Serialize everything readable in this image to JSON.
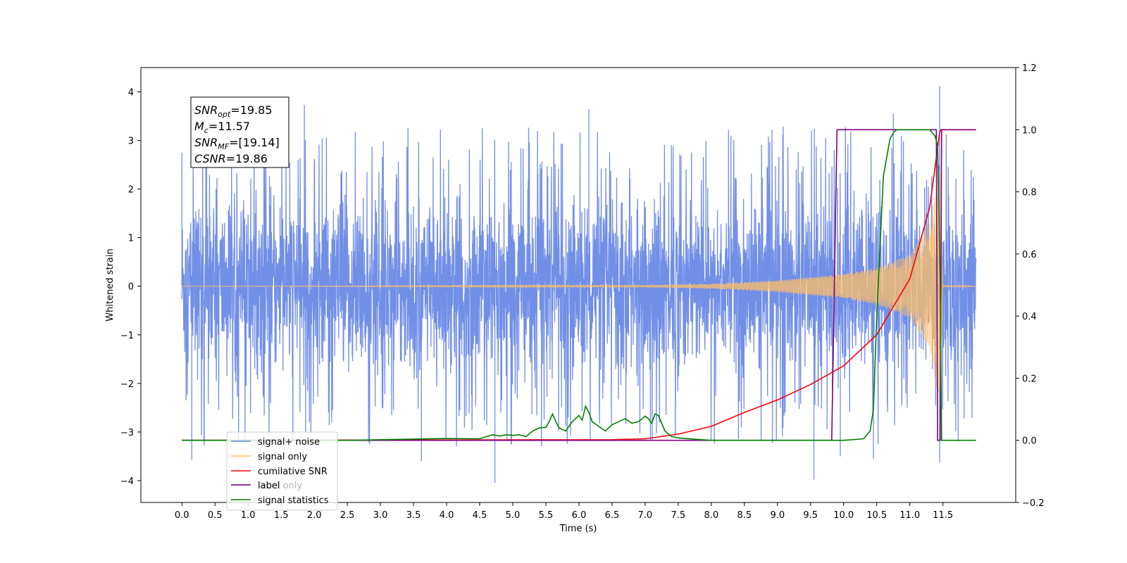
{
  "chart_data": {
    "type": "line",
    "title": "",
    "xlabel": "Time (s)",
    "ylabel": "Whitened strain",
    "y2label": "",
    "xlim": [
      -0.62,
      12.6
    ],
    "ylim": [
      -4.45,
      4.5
    ],
    "y2lim": [
      -0.2,
      1.2
    ],
    "x_ticks": [
      0.0,
      0.5,
      1.0,
      1.5,
      2.0,
      2.5,
      3.0,
      3.5,
      4.0,
      4.5,
      5.0,
      5.5,
      6.0,
      6.5,
      7.0,
      7.5,
      8.0,
      8.5,
      9.0,
      9.5,
      10.0,
      10.5,
      11.0,
      11.5
    ],
    "x_tick_labels": [
      "0.0",
      "0.5",
      "1.0",
      "1.5",
      "2.0",
      "2.5",
      "3.0",
      "3.5",
      "4.0",
      "4.5",
      "5.0",
      "5.5",
      "6.0",
      "6.5",
      "7.0",
      "7.5",
      "8.0",
      "8.5",
      "9.0",
      "9.5",
      "10.0",
      "10.5",
      "11.0",
      "11.5"
    ],
    "y_ticks": [
      -4,
      -3,
      -2,
      -1,
      0,
      1,
      2,
      3,
      4
    ],
    "y_tick_labels": [
      "−4",
      "−3",
      "−2",
      "−1",
      "0",
      "1",
      "2",
      "3",
      "4"
    ],
    "y2_ticks": [
      -0.2,
      0.0,
      0.2,
      0.4,
      0.6,
      0.8,
      1.0,
      1.2
    ],
    "y2_tick_labels": [
      "−0.2",
      "0.0",
      "0.2",
      "0.4",
      "0.6",
      "0.8",
      "1.0",
      "1.2"
    ],
    "grid": false,
    "legend_position": "bottom-left",
    "annotation": {
      "lines": [
        {
          "main": "SNR",
          "sub": "opt",
          "rest": "=19.85"
        },
        {
          "main": "M",
          "sub": "c",
          "rest": "=11.57"
        },
        {
          "main": "SNR",
          "sub": "MF",
          "rest": "=[19.14]"
        },
        {
          "main": "CSNR",
          "sub": "",
          "rest": "=19.86"
        }
      ]
    },
    "series": [
      {
        "name": "signal+ noise",
        "axis": "left",
        "color": "#6a89e6",
        "style": "noise",
        "x_range": [
          0.0,
          12.0
        ],
        "amplitude_envelope": [
          2.2,
          2.2
        ],
        "spike_extremes": [
          {
            "x": 0.0,
            "y": 2.75
          },
          {
            "x": 0.15,
            "y": -3.57
          },
          {
            "x": 1.85,
            "y": 3.73
          },
          {
            "x": 4.73,
            "y": -4.05
          },
          {
            "x": 3.62,
            "y": -3.6
          },
          {
            "x": 9.55,
            "y": -3.98
          },
          {
            "x": 9.95,
            "y": -3.5
          },
          {
            "x": 10.45,
            "y": -3.55
          },
          {
            "x": 11.45,
            "y": 4.12
          },
          {
            "x": 11.45,
            "y": -3.62
          },
          {
            "x": 10.75,
            "y": 3.55
          },
          {
            "x": 6.15,
            "y": 3.65
          }
        ]
      },
      {
        "name": "signal only",
        "axis": "left",
        "color": "#ffbf66",
        "style": "chirp",
        "x": [
          0.0,
          7.0,
          8.0,
          9.0,
          10.0,
          10.5,
          11.0,
          11.3,
          11.4,
          11.46,
          11.5,
          12.0
        ],
        "envelope": [
          0.0,
          0.02,
          0.05,
          0.12,
          0.25,
          0.38,
          0.65,
          1.3,
          2.1,
          2.5,
          0.02,
          0.0
        ]
      },
      {
        "name": "cumilative SNR",
        "axis": "right",
        "color": "#ff0000",
        "x": [
          0.0,
          6.5,
          7.0,
          7.5,
          8.0,
          8.5,
          9.0,
          9.5,
          10.0,
          10.5,
          11.0,
          11.3,
          11.45,
          11.47,
          12.0
        ],
        "values": [
          0.0,
          0.002,
          0.005,
          0.02,
          0.045,
          0.09,
          0.13,
          0.18,
          0.24,
          0.34,
          0.52,
          0.75,
          0.99,
          1.0,
          1.0
        ]
      },
      {
        "name": "label",
        "axis": "right",
        "color": "#800080",
        "x": [
          0.0,
          9.82,
          9.9,
          11.4,
          11.42,
          11.46,
          11.48,
          12.0
        ],
        "values": [
          0.0,
          0.0,
          1.0,
          1.0,
          0.0,
          0.0,
          1.0,
          1.0
        ]
      },
      {
        "name": "label only",
        "axis": "right",
        "color": "#800080",
        "x": [],
        "values": []
      },
      {
        "name": "signal statistics",
        "axis": "right",
        "color": "#008000",
        "x": [
          0.0,
          2.5,
          3.5,
          4.0,
          4.5,
          4.6,
          4.7,
          4.8,
          4.9,
          5.0,
          5.1,
          5.2,
          5.3,
          5.4,
          5.5,
          5.55,
          5.6,
          5.65,
          5.7,
          5.8,
          5.9,
          6.0,
          6.05,
          6.1,
          6.15,
          6.2,
          6.3,
          6.4,
          6.5,
          6.6,
          6.7,
          6.8,
          6.9,
          7.0,
          7.05,
          7.1,
          7.15,
          7.2,
          7.3,
          7.4,
          7.5,
          7.6,
          7.8,
          8.0,
          9.0,
          10.0,
          10.3,
          10.4,
          10.45,
          10.5,
          10.6,
          10.7,
          10.75,
          10.8,
          10.9,
          11.0,
          11.3,
          11.38,
          11.42,
          11.46,
          11.48,
          12.0
        ],
        "values": [
          0.0,
          0.0,
          0.004,
          0.006,
          0.005,
          0.012,
          0.018,
          0.014,
          0.018,
          0.016,
          0.018,
          0.012,
          0.03,
          0.04,
          0.042,
          0.06,
          0.085,
          0.06,
          0.04,
          0.03,
          0.06,
          0.08,
          0.065,
          0.11,
          0.09,
          0.06,
          0.045,
          0.03,
          0.05,
          0.06,
          0.07,
          0.055,
          0.06,
          0.078,
          0.07,
          0.055,
          0.085,
          0.08,
          0.03,
          0.012,
          0.008,
          0.006,
          0.003,
          0.0,
          0.0,
          0.0,
          0.005,
          0.03,
          0.1,
          0.4,
          0.85,
          0.97,
          0.99,
          1.0,
          1.0,
          1.0,
          1.0,
          0.98,
          0.95,
          0.5,
          0.0,
          0.0
        ]
      }
    ]
  }
}
